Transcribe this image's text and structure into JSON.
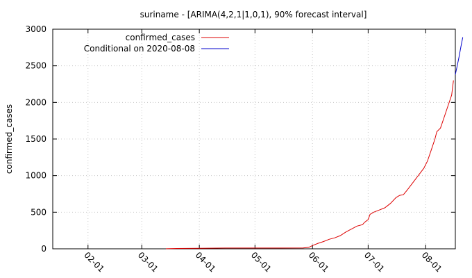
{
  "chart_data": {
    "type": "line",
    "title": "suriname -  [ARIMA(4,2,1|1,0,1), 90% forecast interval]",
    "xlabel": "",
    "ylabel": "confirmed_cases",
    "x_axis_type": "date",
    "xlim": [
      "2020-01-13",
      "2020-08-17"
    ],
    "ylim": [
      0,
      3000
    ],
    "y_ticks": [
      0,
      500,
      1000,
      1500,
      2000,
      2500,
      3000
    ],
    "x_ticks": [
      {
        "date": "2020-02-01",
        "label": "02-01"
      },
      {
        "date": "2020-03-01",
        "label": "03-01"
      },
      {
        "date": "2020-04-01",
        "label": "04-01"
      },
      {
        "date": "2020-05-01",
        "label": "05-01"
      },
      {
        "date": "2020-06-01",
        "label": "06-01"
      },
      {
        "date": "2020-07-01",
        "label": "07-01"
      },
      {
        "date": "2020-08-01",
        "label": "08-01"
      }
    ],
    "grid": true,
    "legend_position": "top-left",
    "series": [
      {
        "name": "confirmed_cases",
        "color": "#dd0000",
        "points": [
          [
            "2020-03-14",
            1
          ],
          [
            "2020-03-20",
            5
          ],
          [
            "2020-04-01",
            8
          ],
          [
            "2020-04-15",
            10
          ],
          [
            "2020-05-01",
            10
          ],
          [
            "2020-05-15",
            10
          ],
          [
            "2020-05-27",
            11
          ],
          [
            "2020-05-30",
            20
          ],
          [
            "2020-06-01",
            45
          ],
          [
            "2020-06-04",
            75
          ],
          [
            "2020-06-07",
            100
          ],
          [
            "2020-06-10",
            130
          ],
          [
            "2020-06-13",
            150
          ],
          [
            "2020-06-16",
            180
          ],
          [
            "2020-06-19",
            230
          ],
          [
            "2020-06-22",
            270
          ],
          [
            "2020-06-25",
            310
          ],
          [
            "2020-06-28",
            330
          ],
          [
            "2020-06-29",
            360
          ],
          [
            "2020-07-01",
            400
          ],
          [
            "2020-07-02",
            470
          ],
          [
            "2020-07-04",
            500
          ],
          [
            "2020-07-07",
            530
          ],
          [
            "2020-07-10",
            560
          ],
          [
            "2020-07-13",
            620
          ],
          [
            "2020-07-16",
            700
          ],
          [
            "2020-07-18",
            730
          ],
          [
            "2020-07-20",
            740
          ],
          [
            "2020-07-22",
            800
          ],
          [
            "2020-07-25",
            900
          ],
          [
            "2020-07-28",
            1000
          ],
          [
            "2020-07-31",
            1100
          ],
          [
            "2020-08-02",
            1200
          ],
          [
            "2020-08-04",
            1350
          ],
          [
            "2020-08-06",
            1500
          ],
          [
            "2020-08-07",
            1600
          ],
          [
            "2020-08-09",
            1650
          ],
          [
            "2020-08-11",
            1800
          ],
          [
            "2020-08-13",
            1950
          ],
          [
            "2020-08-15",
            2100
          ],
          [
            "2020-08-16",
            2300
          ]
        ]
      },
      {
        "name": "Conditional on 2020-08-08",
        "color": "#0000cc",
        "points": [
          [
            "2020-08-17",
            2380
          ],
          [
            "2020-08-18",
            2500
          ],
          [
            "2020-08-19",
            2620
          ],
          [
            "2020-08-20",
            2760
          ],
          [
            "2020-08-21",
            2890
          ]
        ]
      }
    ]
  }
}
